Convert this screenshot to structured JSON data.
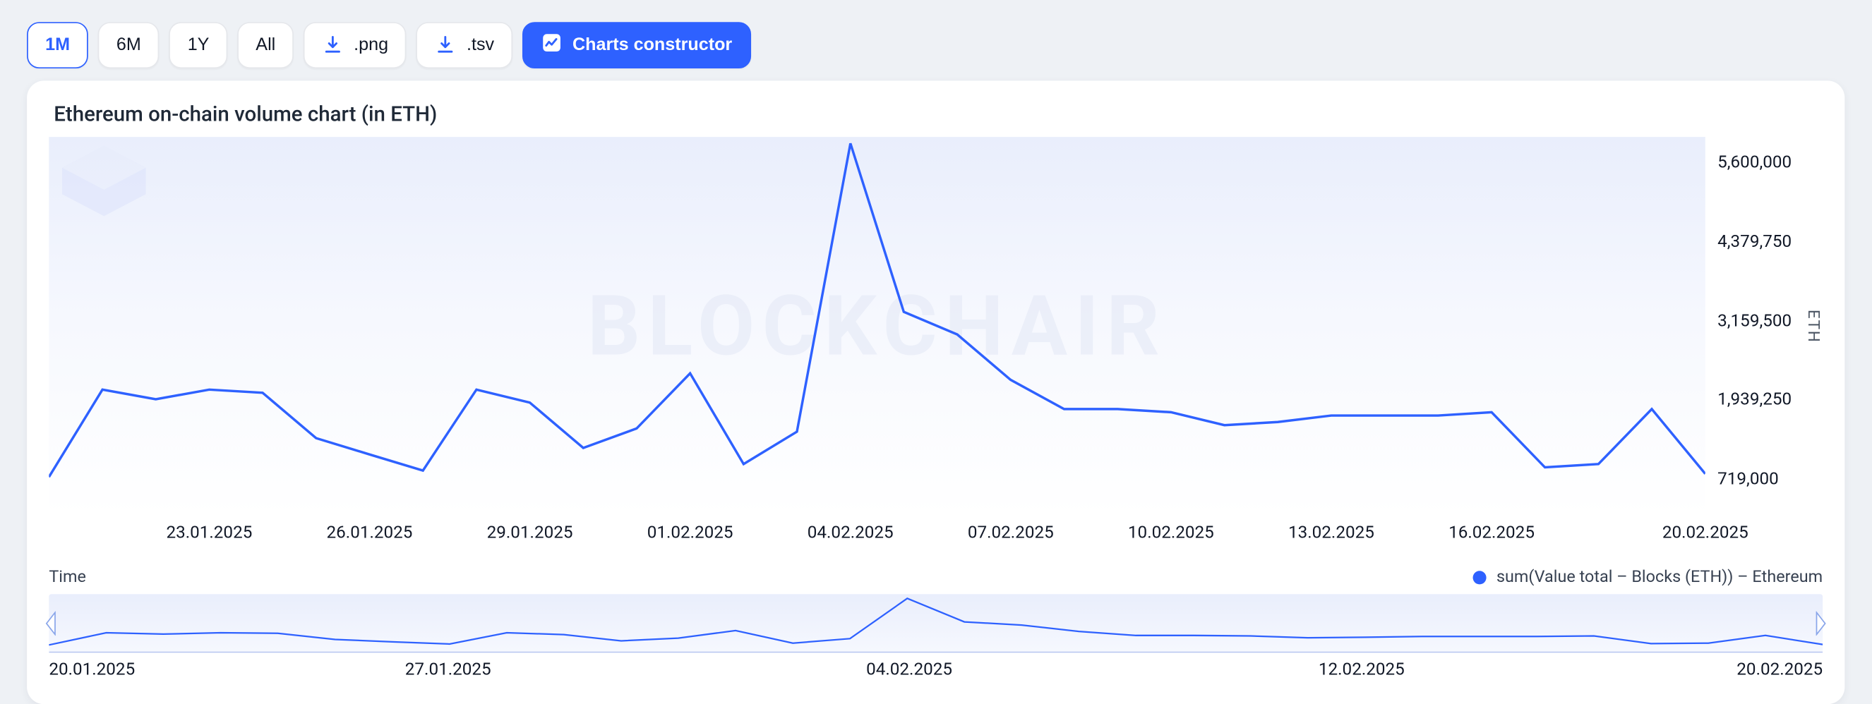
{
  "colors": {
    "page_bg": "#eef1f5",
    "card_bg": "#ffffff",
    "btn_bg": "#ffffff",
    "btn_border": "#e5e7eb",
    "btn_text": "#111827",
    "active_border": "#2e61ff",
    "active_text": "#2e61ff",
    "primary_bg": "#2e61ff",
    "primary_text": "#ffffff",
    "download_icon": "#2e61ff",
    "line_color": "#2e61ff",
    "watermark_text": "#e3e8f5",
    "plot_grad_top": "#e9eefc",
    "plot_grad_bottom": "#ffffff",
    "axis_text": "#111827",
    "axis_label": "#4b5563",
    "handle_border": "#8aa6ea",
    "handle_fill": "#ffffff"
  },
  "controls": {
    "ranges": [
      {
        "label": "1M",
        "active": true
      },
      {
        "label": "6M",
        "active": false
      },
      {
        "label": "1Y",
        "active": false
      },
      {
        "label": "All",
        "active": false
      }
    ],
    "downloads": [
      {
        "label": ".png"
      },
      {
        "label": ".tsv"
      }
    ],
    "constructor_label": "Charts constructor"
  },
  "chart": {
    "title": "Ethereum on-chain volume chart (in ETH)",
    "type": "line",
    "watermark_text": "BLOCKCHAIR",
    "y_axis_label": "ETH",
    "y_ticks": [
      {
        "value": 5600000,
        "label": "5,600,000"
      },
      {
        "value": 4379750,
        "label": "4,379,750"
      },
      {
        "value": 3159500,
        "label": "3,159,500"
      },
      {
        "value": 1939250,
        "label": "1,939,250"
      },
      {
        "value": 719000,
        "label": "719,000"
      }
    ],
    "y_min": 150000,
    "y_max": 6000000,
    "x_ticks": [
      "23.01.2025",
      "26.01.2025",
      "29.01.2025",
      "01.02.2025",
      "04.02.2025",
      "07.02.2025",
      "10.02.2025",
      "13.02.2025",
      "16.02.2025",
      "20.02.2025"
    ],
    "line_width": 2,
    "title_fontsize": 17,
    "tick_fontsize": 14,
    "series": {
      "dates": [
        "20.01.2025",
        "21.01.2025",
        "22.01.2025",
        "23.01.2025",
        "24.01.2025",
        "25.01.2025",
        "26.01.2025",
        "27.01.2025",
        "28.01.2025",
        "29.01.2025",
        "30.01.2025",
        "31.01.2025",
        "01.02.2025",
        "02.02.2025",
        "03.02.2025",
        "04.02.2025",
        "05.02.2025",
        "06.02.2025",
        "07.02.2025",
        "08.02.2025",
        "09.02.2025",
        "10.02.2025",
        "11.02.2025",
        "12.02.2025",
        "13.02.2025",
        "14.02.2025",
        "15.02.2025",
        "16.02.2025",
        "17.02.2025",
        "18.02.2025",
        "19.02.2025",
        "20.02.2025"
      ],
      "values": [
        750000,
        2100000,
        1950000,
        2100000,
        2050000,
        1350000,
        1100000,
        850000,
        2100000,
        1900000,
        1200000,
        1500000,
        2350000,
        950000,
        1450000,
        5900000,
        3300000,
        2950000,
        2250000,
        1800000,
        1800000,
        1750000,
        1550000,
        1600000,
        1700000,
        1700000,
        1700000,
        1750000,
        900000,
        950000,
        1800000,
        800000
      ]
    },
    "legend": {
      "left_label": "Time",
      "right_label": "sum(Value total – Blocks (ETH)) – Ethereum"
    }
  },
  "mini": {
    "ticks": [
      {
        "label": "20.01.2025",
        "pos": 0.0,
        "align": "left"
      },
      {
        "label": "27.01.2025",
        "pos": 0.225,
        "align": "center"
      },
      {
        "label": "04.02.2025",
        "pos": 0.485,
        "align": "center"
      },
      {
        "label": "12.02.2025",
        "pos": 0.74,
        "align": "center"
      },
      {
        "label": "20.02.2025",
        "pos": 1.0,
        "align": "right"
      }
    ]
  }
}
